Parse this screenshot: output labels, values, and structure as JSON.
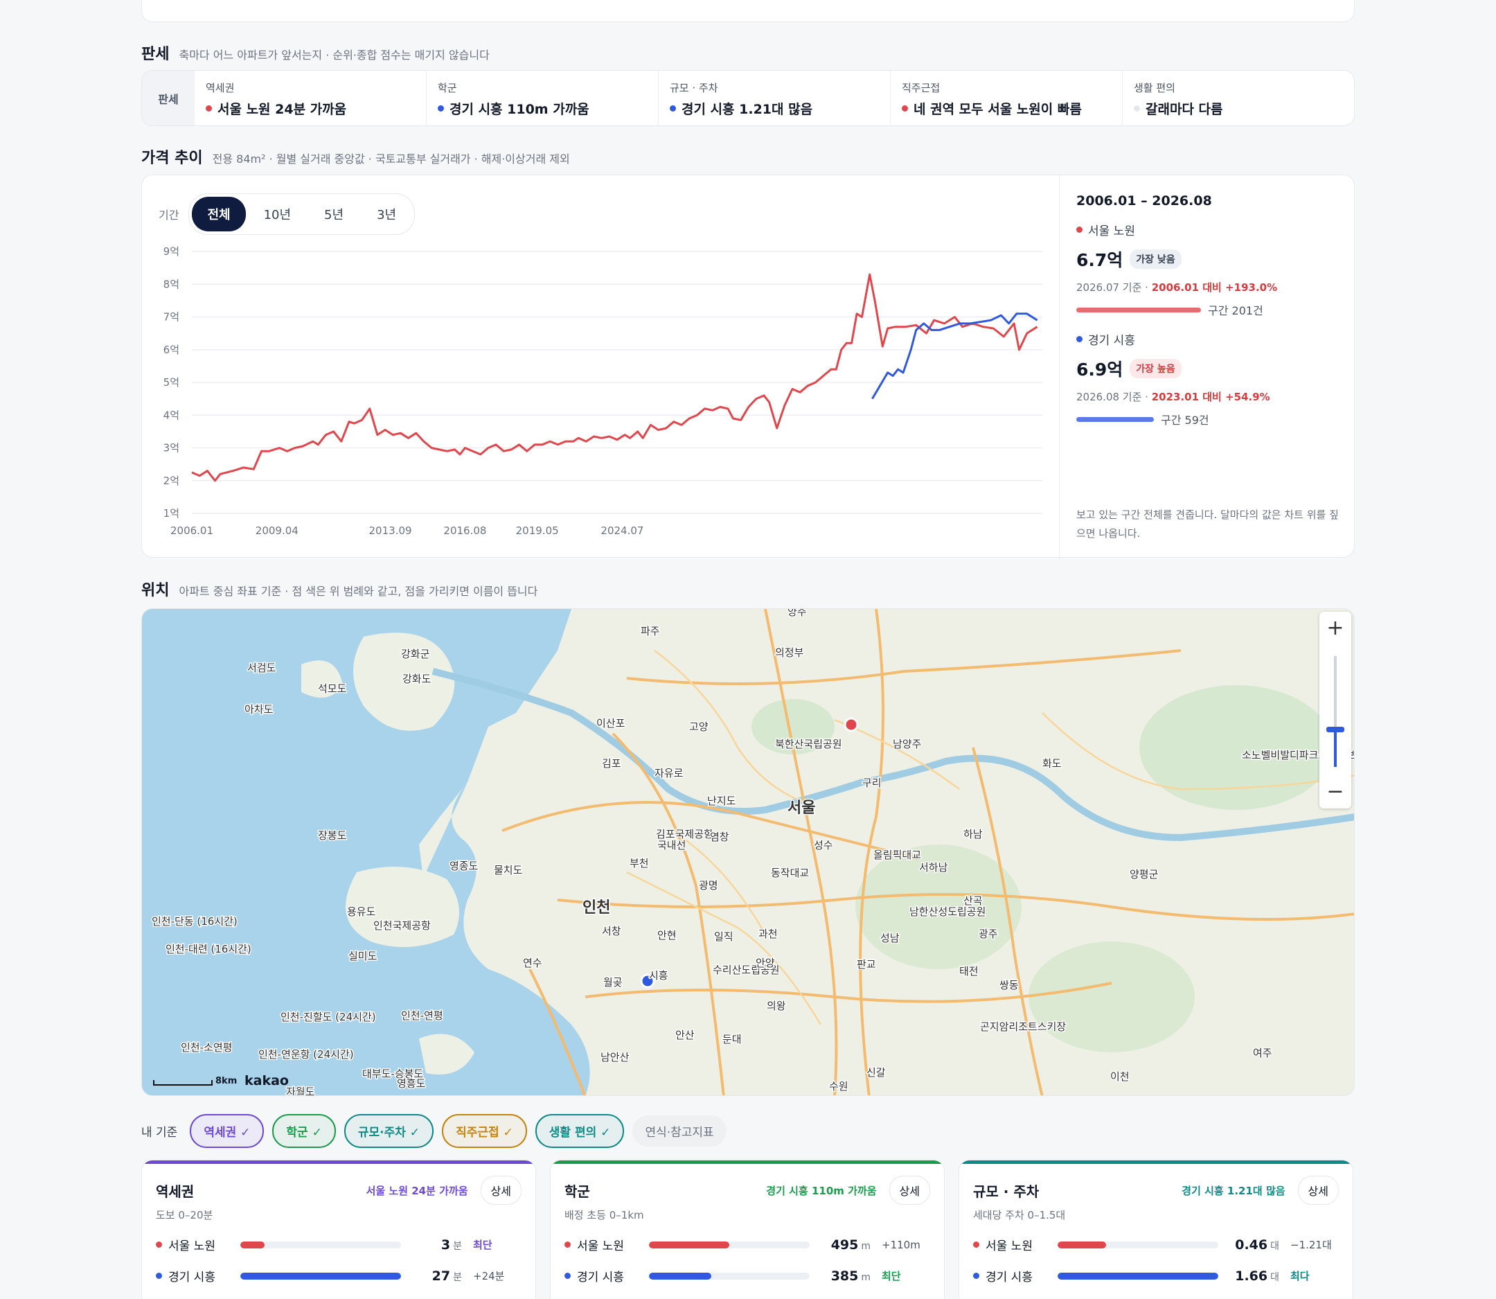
{
  "verdict": {
    "title": "판세",
    "desc": "축마다 어느 아파트가 앞서는지 · 순위·종합 점수는 매기지 않습니다",
    "label": "판세",
    "cells": [
      {
        "name": "역세권",
        "value": "서울 노원 24분 가까움",
        "color": "#e0474c"
      },
      {
        "name": "학군",
        "value": "경기 시흥 110m 가까움",
        "color": "#2f5ae0"
      },
      {
        "name": "규모 · 주차",
        "value": "경기 시흥 1.21대 많음",
        "color": "#2f5ae0"
      },
      {
        "name": "직주근접",
        "value": "네 권역 모두 서울 노원이 빠름",
        "color": "#e0474c"
      },
      {
        "name": "생활 편의",
        "value": "갈래마다 다름",
        "color": "#e5e7eb"
      }
    ]
  },
  "price": {
    "title": "가격 추이",
    "desc": "전용 84m² · 월별 실거래 중앙값 · 국토교통부 실거래가 · 해제·이상거래 제외",
    "period_label": "기간",
    "periods": [
      "전체",
      "10년",
      "5년",
      "3년"
    ],
    "active_period": "전체",
    "side": {
      "range": "2006.01 – 2026.08",
      "items": [
        {
          "name": "서울 노원",
          "value": "6.7억",
          "badge": "가장 낮음",
          "sub_prefix": "2026.07 기준 · ",
          "sub_change": "2006.01 대비 +193.0%",
          "count": "구간 201건",
          "color": "#e0474c"
        },
        {
          "name": "경기 시흥",
          "value": "6.9억",
          "badge": "가장 높음",
          "sub_prefix": "2026.08 기준 · ",
          "sub_change": "2023.01 대비 +54.9%",
          "count": "구간 59건",
          "color": "#2f5ae0"
        }
      ],
      "note": "보고 있는 구간 전체를 견줍니다. 달마다의 값은 차트 위를 짚으면 나옵니다."
    }
  },
  "chart_data": {
    "type": "line",
    "ylabel": "",
    "yticks": [
      "9억",
      "8억",
      "7억",
      "6억",
      "5억",
      "4억",
      "3억",
      "2억",
      "1억"
    ],
    "ylim": [
      1,
      9
    ],
    "xticks": [
      "2006.01",
      "2009.04",
      "2013.09",
      "2016.08",
      "2019.05",
      "2024.07"
    ],
    "grid": true,
    "series": [
      {
        "name": "서울 노원",
        "color": "#e0474c",
        "points": [
          [
            2006.0,
            2.25
          ],
          [
            2006.3,
            2.15
          ],
          [
            2006.6,
            2.3
          ],
          [
            2006.9,
            2.0
          ],
          [
            2007.1,
            2.2
          ],
          [
            2007.6,
            2.3
          ],
          [
            2008.0,
            2.4
          ],
          [
            2008.4,
            2.35
          ],
          [
            2008.7,
            2.9
          ],
          [
            2009.0,
            2.9
          ],
          [
            2009.4,
            3.0
          ],
          [
            2009.7,
            2.9
          ],
          [
            2010.0,
            3.0
          ],
          [
            2010.3,
            3.05
          ],
          [
            2010.7,
            3.2
          ],
          [
            2010.9,
            3.1
          ],
          [
            2011.2,
            3.4
          ],
          [
            2011.5,
            3.5
          ],
          [
            2011.8,
            3.2
          ],
          [
            2012.1,
            3.8
          ],
          [
            2012.3,
            3.75
          ],
          [
            2012.6,
            3.85
          ],
          [
            2012.9,
            4.2
          ],
          [
            2013.2,
            3.4
          ],
          [
            2013.5,
            3.55
          ],
          [
            2013.8,
            3.4
          ],
          [
            2014.1,
            3.45
          ],
          [
            2014.4,
            3.3
          ],
          [
            2014.7,
            3.45
          ],
          [
            2015.0,
            3.2
          ],
          [
            2015.3,
            3.0
          ],
          [
            2015.6,
            2.95
          ],
          [
            2015.9,
            2.9
          ],
          [
            2016.2,
            2.95
          ],
          [
            2016.4,
            2.8
          ],
          [
            2016.6,
            3.0
          ],
          [
            2016.9,
            2.9
          ],
          [
            2017.2,
            2.8
          ],
          [
            2017.5,
            3.0
          ],
          [
            2017.8,
            3.1
          ],
          [
            2018.1,
            2.9
          ],
          [
            2018.4,
            2.95
          ],
          [
            2018.7,
            3.1
          ],
          [
            2019.0,
            2.9
          ],
          [
            2019.3,
            3.1
          ],
          [
            2019.6,
            3.1
          ],
          [
            2019.9,
            3.2
          ],
          [
            2020.2,
            3.1
          ],
          [
            2020.5,
            3.2
          ],
          [
            2020.8,
            3.2
          ],
          [
            2021.0,
            3.3
          ],
          [
            2021.3,
            3.2
          ],
          [
            2021.6,
            3.35
          ],
          [
            2021.9,
            3.3
          ],
          [
            2022.2,
            3.35
          ],
          [
            2022.5,
            3.25
          ],
          [
            2022.8,
            3.4
          ],
          [
            2023.0,
            3.3
          ],
          [
            2023.3,
            3.5
          ],
          [
            2023.5,
            3.3
          ],
          [
            2023.8,
            3.7
          ],
          [
            2024.1,
            3.55
          ],
          [
            2024.4,
            3.6
          ],
          [
            2024.7,
            3.8
          ],
          [
            2025.0,
            3.7
          ],
          [
            2025.3,
            3.9
          ],
          [
            2025.6,
            4.0
          ],
          [
            2025.9,
            4.2
          ],
          [
            2026.2,
            4.15
          ],
          [
            2026.5,
            4.25
          ],
          [
            2026.8,
            4.2
          ],
          [
            2027.0,
            3.9
          ],
          [
            2027.3,
            3.85
          ],
          [
            2027.6,
            4.25
          ],
          [
            2027.9,
            4.5
          ],
          [
            2028.2,
            4.6
          ],
          [
            2028.4,
            4.4
          ],
          [
            2028.7,
            3.6
          ],
          [
            2029.0,
            4.3
          ],
          [
            2029.3,
            4.8
          ],
          [
            2029.6,
            4.7
          ],
          [
            2029.9,
            4.9
          ],
          [
            2030.2,
            5.0
          ],
          [
            2030.5,
            5.2
          ],
          [
            2030.8,
            5.4
          ],
          [
            2031.0,
            5.4
          ],
          [
            2031.2,
            6.0
          ],
          [
            2031.4,
            6.2
          ],
          [
            2031.6,
            6.2
          ],
          [
            2031.8,
            7.1
          ],
          [
            2032.0,
            7.0
          ],
          [
            2032.3,
            8.3
          ],
          [
            2032.5,
            7.5
          ],
          [
            2032.8,
            6.1
          ],
          [
            2033.0,
            6.65
          ],
          [
            2033.3,
            6.7
          ],
          [
            2033.7,
            6.7
          ],
          [
            2034.1,
            6.75
          ],
          [
            2034.5,
            6.5
          ],
          [
            2034.8,
            6.9
          ],
          [
            2035.2,
            6.8
          ],
          [
            2035.6,
            7.0
          ],
          [
            2035.9,
            6.7
          ],
          [
            2036.3,
            6.8
          ],
          [
            2036.7,
            6.7
          ],
          [
            2037.1,
            6.65
          ],
          [
            2037.5,
            6.4
          ],
          [
            2037.9,
            6.8
          ],
          [
            2038.1,
            6.0
          ],
          [
            2038.4,
            6.5
          ],
          [
            2038.8,
            6.7
          ]
        ]
      },
      {
        "name": "경기 시흥",
        "color": "#2f5ae0",
        "points": [
          [
            2032.4,
            4.5
          ],
          [
            2032.7,
            4.9
          ],
          [
            2033.0,
            5.3
          ],
          [
            2033.2,
            5.2
          ],
          [
            2033.4,
            5.4
          ],
          [
            2033.6,
            5.3
          ],
          [
            2033.9,
            6.0
          ],
          [
            2034.1,
            6.6
          ],
          [
            2034.4,
            6.8
          ],
          [
            2034.7,
            6.6
          ],
          [
            2035.0,
            6.6
          ],
          [
            2035.4,
            6.7
          ],
          [
            2035.8,
            6.8
          ],
          [
            2036.2,
            6.8
          ],
          [
            2036.6,
            6.85
          ],
          [
            2037.0,
            6.9
          ],
          [
            2037.4,
            7.05
          ],
          [
            2037.7,
            6.8
          ],
          [
            2038.0,
            7.1
          ],
          [
            2038.4,
            7.1
          ],
          [
            2038.8,
            6.9
          ]
        ]
      }
    ]
  },
  "location": {
    "title": "위치",
    "desc": "아파트 중심 좌표 기준 · 점 색은 위 범례와 같고, 점을 가리키면 이름이 뜹니다",
    "scale": "8km",
    "brand": "kakao",
    "zoom_in": "+",
    "zoom_out": "−",
    "places": [
      {
        "n": "파주",
        "big": false
      },
      {
        "n": "의정부",
        "big": false
      },
      {
        "n": "양주",
        "big": false
      },
      {
        "n": "강화군",
        "big": false
      },
      {
        "n": "강화도",
        "big": false
      },
      {
        "n": "서검도",
        "big": false
      },
      {
        "n": "석모도",
        "big": false
      },
      {
        "n": "아차도",
        "big": false
      },
      {
        "n": "고양",
        "big": false
      },
      {
        "n": "이산포",
        "big": false
      },
      {
        "n": "김포",
        "big": false
      },
      {
        "n": "자유로",
        "big": false
      },
      {
        "n": "북한산국립공원",
        "big": false
      },
      {
        "n": "남양주",
        "big": false
      },
      {
        "n": "화도",
        "big": false
      },
      {
        "n": "구리",
        "big": false
      },
      {
        "n": "서울",
        "big": true
      },
      {
        "n": "난지도",
        "big": false
      },
      {
        "n": "김포국제공항",
        "big": false
      },
      {
        "n": "국내선",
        "big": false
      },
      {
        "n": "염창",
        "big": false
      },
      {
        "n": "성수",
        "big": false
      },
      {
        "n": "올림픽대교",
        "big": false
      },
      {
        "n": "서하남",
        "big": false
      },
      {
        "n": "하남",
        "big": false
      },
      {
        "n": "장봉도",
        "big": false
      },
      {
        "n": "영종도",
        "big": false
      },
      {
        "n": "물치도",
        "big": false
      },
      {
        "n": "부천",
        "big": false
      },
      {
        "n": "광명",
        "big": false
      },
      {
        "n": "동작대교",
        "big": false
      },
      {
        "n": "양평군",
        "big": false
      },
      {
        "n": "인천",
        "big": true
      },
      {
        "n": "용유도",
        "big": false
      },
      {
        "n": "인천국제공항",
        "big": false
      },
      {
        "n": "인천-단동 (16시간)",
        "big": false
      },
      {
        "n": "인천-대련 (16시간)",
        "big": false
      },
      {
        "n": "실미도",
        "big": false
      },
      {
        "n": "서창",
        "big": false
      },
      {
        "n": "안현",
        "big": false
      },
      {
        "n": "일직",
        "big": false
      },
      {
        "n": "과천",
        "big": false
      },
      {
        "n": "남한산성도립공원",
        "big": false
      },
      {
        "n": "산곡",
        "big": false
      },
      {
        "n": "성남",
        "big": false
      },
      {
        "n": "광주",
        "big": false
      },
      {
        "n": "연수",
        "big": false
      },
      {
        "n": "월곶",
        "big": false
      },
      {
        "n": "시흥",
        "big": false
      },
      {
        "n": "수리산도립공원",
        "big": false
      },
      {
        "n": "안양",
        "big": false
      },
      {
        "n": "판교",
        "big": false
      },
      {
        "n": "태전",
        "big": false
      },
      {
        "n": "쌍동",
        "big": false
      },
      {
        "n": "의왕",
        "big": false
      },
      {
        "n": "인천-진할도 (24시간)",
        "big": false
      },
      {
        "n": "인천-연평",
        "big": false
      },
      {
        "n": "곤지암리조트스키장",
        "big": false
      },
      {
        "n": "인천-소연평",
        "big": false
      },
      {
        "n": "인천-연운항 (24시간)",
        "big": false
      },
      {
        "n": "안산",
        "big": false
      },
      {
        "n": "둔대",
        "big": false
      },
      {
        "n": "남안산",
        "big": false
      },
      {
        "n": "대부도-승봉도",
        "big": false
      },
      {
        "n": "영흥도",
        "big": false
      },
      {
        "n": "자월도",
        "big": false
      },
      {
        "n": "수원",
        "big": false
      },
      {
        "n": "신갈",
        "big": false
      },
      {
        "n": "이천",
        "big": false
      },
      {
        "n": "여주",
        "big": false
      },
      {
        "n": "소노벨비발디파크스키&보드",
        "big": false
      }
    ]
  },
  "criteria": {
    "label": "내 기준",
    "chips": [
      {
        "label": "역세권 ✓",
        "color": "#6d4ad6",
        "on": true
      },
      {
        "label": "학군 ✓",
        "color": "#1a9c4c",
        "on": true
      },
      {
        "label": "규모·주차 ✓",
        "color": "#0e8a86",
        "on": true
      },
      {
        "label": "직주근접 ✓",
        "color": "#c4830a",
        "on": true
      },
      {
        "label": "생활 편의 ✓",
        "color": "#0e8a86",
        "on": true
      },
      {
        "label": "연식·참고지표",
        "color": "#6b7280",
        "on": false
      }
    ]
  },
  "cards": [
    {
      "title": "역세권",
      "winner": "서울 노원 24분 가까움",
      "color": "#6d4ad6",
      "detail": "상세",
      "criterion": "도보 0–20분",
      "rows": [
        {
          "name": "서울 노원",
          "num": "3",
          "unit": "분",
          "diff": "최단",
          "fill": 0.15,
          "color": "#e0474c"
        },
        {
          "name": "경기 시흥",
          "num": "27",
          "unit": "분",
          "diff": "+24분",
          "fill": 1.0,
          "color": "#2f5ae0"
        }
      ]
    },
    {
      "title": "학군",
      "winner": "경기 시흥 110m 가까움",
      "color": "#1a9c4c",
      "detail": "상세",
      "criterion": "배정 초등 0–1km",
      "rows": [
        {
          "name": "서울 노원",
          "num": "495",
          "unit": "m",
          "diff": "+110m",
          "fill": 0.5,
          "color": "#e0474c"
        },
        {
          "name": "경기 시흥",
          "num": "385",
          "unit": "m",
          "diff": "최단",
          "fill": 0.39,
          "color": "#2f5ae0"
        }
      ]
    },
    {
      "title": "규모 · 주차",
      "winner": "경기 시흥 1.21대 많음",
      "color": "#0e8a86",
      "detail": "상세",
      "criterion": "세대당 주차 0–1.5대",
      "rows": [
        {
          "name": "서울 노원",
          "num": "0.46",
          "unit": "대",
          "diff": "−1.21대",
          "fill": 0.3,
          "color": "#e0474c"
        },
        {
          "name": "경기 시흥",
          "num": "1.66",
          "unit": "대",
          "diff": "최다",
          "fill": 1.0,
          "color": "#2f5ae0"
        }
      ]
    }
  ]
}
